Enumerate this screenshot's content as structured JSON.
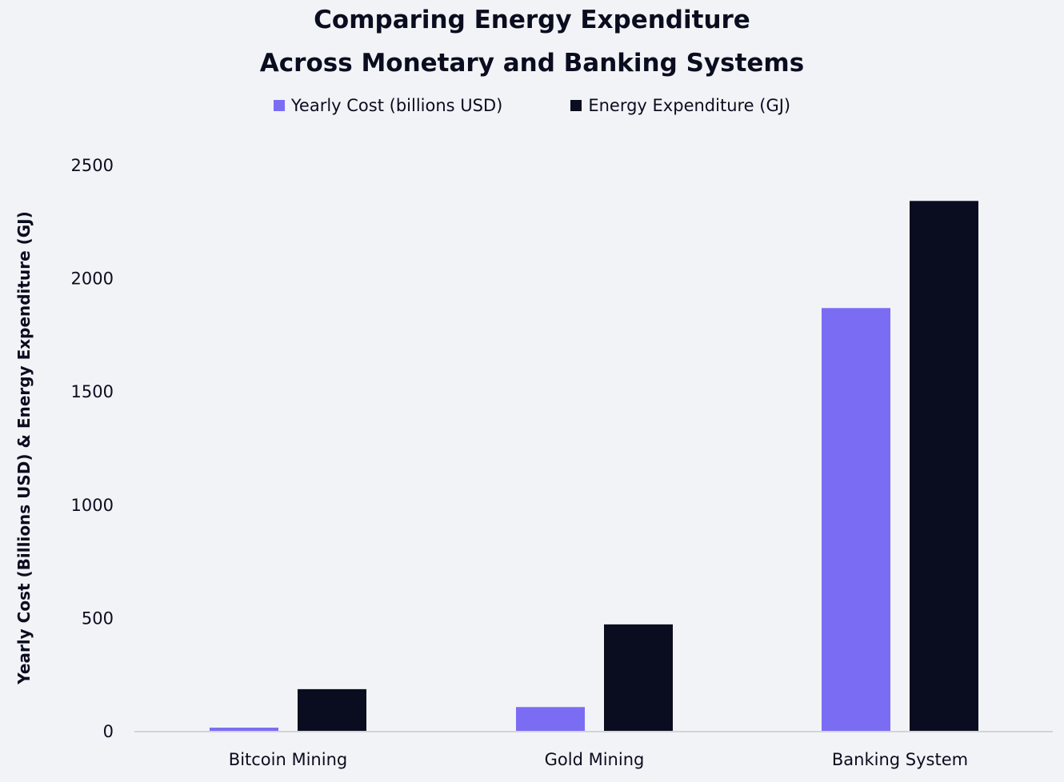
{
  "chart_data": {
    "type": "bar",
    "title": [
      "Comparing Energy Expenditure",
      "Across Monetary and Banking Systems"
    ],
    "xlabel": "",
    "ylabel": "Yearly Cost (Billions USD) & Energy Expenditure (GJ)",
    "categories": [
      "Bitcoin Mining",
      "Gold Mining",
      "Banking System"
    ],
    "series": [
      {
        "name": "Yearly Cost (billions USD)",
        "values": [
          14,
          105,
          1867
        ],
        "color": "#7b6cf4"
      },
      {
        "name": "Energy Expenditure (GJ)",
        "values": [
          184,
          470,
          2340
        ],
        "color": "#0a0d1f"
      }
    ],
    "ylim": [
      0,
      2500
    ],
    "yticks": [
      "0",
      "500",
      "1000",
      "1500",
      "2000",
      "2500"
    ],
    "grid": false,
    "legend_position": "top-center",
    "background": "#f2f3f6"
  }
}
